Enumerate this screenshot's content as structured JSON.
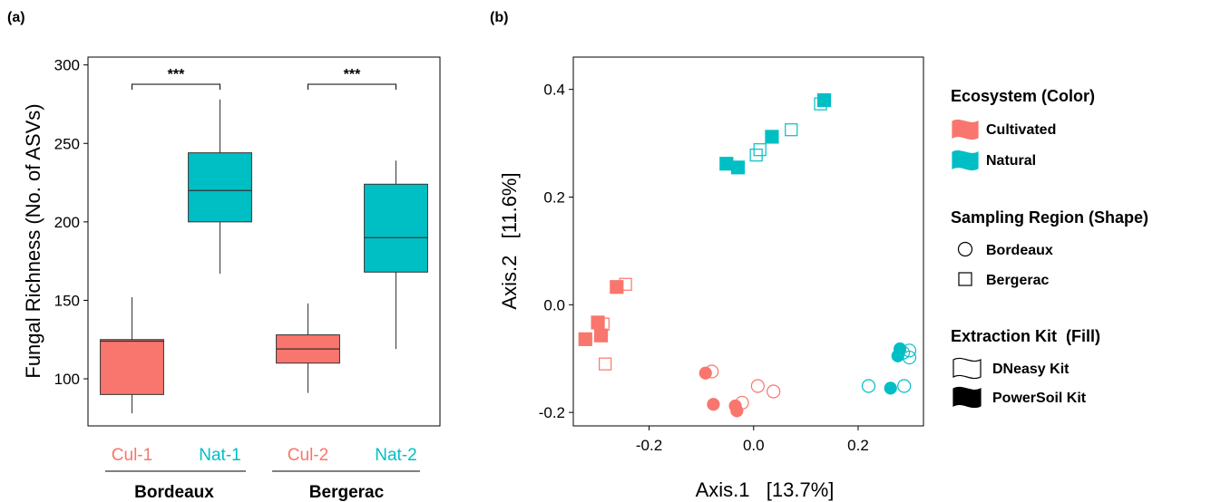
{
  "colors": {
    "cultivated": "#F8766D",
    "natural": "#00BFC4"
  },
  "chart_data": [
    {
      "panel": "(a)",
      "type": "box",
      "ylabel": "Fungal Richness (No. of ASVs)",
      "ylim": [
        70,
        305
      ],
      "yticks": [
        100,
        150,
        200,
        250,
        300
      ],
      "categories": [
        "Cul-1",
        "Nat-1",
        "Cul-2",
        "Nat-2"
      ],
      "category_ecosystem": [
        "cultivated",
        "natural",
        "cultivated",
        "natural"
      ],
      "boxes": [
        {
          "min": 78,
          "q1": 90,
          "median": 124,
          "q3": 125,
          "max": 152
        },
        {
          "min": 167,
          "q1": 200,
          "median": 220,
          "q3": 244,
          "max": 278
        },
        {
          "min": 91,
          "q1": 110,
          "median": 119,
          "q3": 128,
          "max": 148
        },
        {
          "min": 119,
          "q1": 168,
          "median": 190,
          "q3": 224,
          "max": 239
        }
      ],
      "groups": [
        "Bordeaux",
        "Bergerac"
      ],
      "significance": [
        "***",
        "***"
      ]
    },
    {
      "panel": "(b)",
      "type": "scatter",
      "xlabel": "Axis.1   [13.7%]",
      "ylabel": "Axis.2   [11.6%]",
      "xlim": [
        -0.345,
        0.325
      ],
      "ylim": [
        -0.225,
        0.46
      ],
      "xticks": [
        -0.2,
        0.0,
        0.2
      ],
      "yticks": [
        -0.2,
        0.0,
        0.2,
        0.4
      ],
      "xtick_labels": [
        "-0.2",
        "0.0",
        "0.2"
      ],
      "ytick_labels": [
        "-0.2",
        "0.0",
        "0.2",
        "0.4"
      ],
      "points": [
        {
          "x": 0.135,
          "y": 0.38,
          "eco": "natural",
          "region": "Bergerac",
          "kit": "PowerSoil"
        },
        {
          "x": 0.128,
          "y": 0.373,
          "eco": "natural",
          "region": "Bergerac",
          "kit": "DNeasy"
        },
        {
          "x": 0.072,
          "y": 0.325,
          "eco": "natural",
          "region": "Bergerac",
          "kit": "DNeasy"
        },
        {
          "x": 0.035,
          "y": 0.312,
          "eco": "natural",
          "region": "Bergerac",
          "kit": "PowerSoil"
        },
        {
          "x": 0.012,
          "y": 0.288,
          "eco": "natural",
          "region": "Bergerac",
          "kit": "DNeasy"
        },
        {
          "x": 0.005,
          "y": 0.278,
          "eco": "natural",
          "region": "Bergerac",
          "kit": "DNeasy"
        },
        {
          "x": -0.052,
          "y": 0.262,
          "eco": "natural",
          "region": "Bergerac",
          "kit": "PowerSoil"
        },
        {
          "x": -0.03,
          "y": 0.255,
          "eco": "natural",
          "region": "Bergerac",
          "kit": "PowerSoil"
        },
        {
          "x": -0.245,
          "y": 0.038,
          "eco": "cultivated",
          "region": "Bergerac",
          "kit": "DNeasy"
        },
        {
          "x": -0.262,
          "y": 0.033,
          "eco": "cultivated",
          "region": "Bergerac",
          "kit": "PowerSoil"
        },
        {
          "x": -0.288,
          "y": -0.036,
          "eco": "cultivated",
          "region": "Bergerac",
          "kit": "DNeasy"
        },
        {
          "x": -0.298,
          "y": -0.033,
          "eco": "cultivated",
          "region": "Bergerac",
          "kit": "PowerSoil"
        },
        {
          "x": -0.292,
          "y": -0.057,
          "eco": "cultivated",
          "region": "Bergerac",
          "kit": "PowerSoil"
        },
        {
          "x": -0.322,
          "y": -0.064,
          "eco": "cultivated",
          "region": "Bergerac",
          "kit": "PowerSoil"
        },
        {
          "x": -0.284,
          "y": -0.11,
          "eco": "cultivated",
          "region": "Bergerac",
          "kit": "DNeasy"
        },
        {
          "x": -0.08,
          "y": -0.124,
          "eco": "cultivated",
          "region": "Bordeaux",
          "kit": "DNeasy"
        },
        {
          "x": -0.092,
          "y": -0.127,
          "eco": "cultivated",
          "region": "Bordeaux",
          "kit": "PowerSoil"
        },
        {
          "x": 0.008,
          "y": -0.151,
          "eco": "cultivated",
          "region": "Bordeaux",
          "kit": "DNeasy"
        },
        {
          "x": 0.038,
          "y": -0.161,
          "eco": "cultivated",
          "region": "Bordeaux",
          "kit": "DNeasy"
        },
        {
          "x": -0.022,
          "y": -0.182,
          "eco": "cultivated",
          "region": "Bordeaux",
          "kit": "DNeasy"
        },
        {
          "x": -0.077,
          "y": -0.185,
          "eco": "cultivated",
          "region": "Bordeaux",
          "kit": "PowerSoil"
        },
        {
          "x": -0.035,
          "y": -0.188,
          "eco": "cultivated",
          "region": "Bordeaux",
          "kit": "PowerSoil"
        },
        {
          "x": -0.032,
          "y": -0.197,
          "eco": "cultivated",
          "region": "Bordeaux",
          "kit": "PowerSoil"
        },
        {
          "x": 0.28,
          "y": -0.082,
          "eco": "natural",
          "region": "Bordeaux",
          "kit": "PowerSoil"
        },
        {
          "x": 0.298,
          "y": -0.085,
          "eco": "natural",
          "region": "Bordeaux",
          "kit": "DNeasy"
        },
        {
          "x": 0.286,
          "y": -0.089,
          "eco": "natural",
          "region": "Bordeaux",
          "kit": "DNeasy"
        },
        {
          "x": 0.276,
          "y": -0.095,
          "eco": "natural",
          "region": "Bordeaux",
          "kit": "PowerSoil"
        },
        {
          "x": 0.298,
          "y": -0.098,
          "eco": "natural",
          "region": "Bordeaux",
          "kit": "DNeasy"
        },
        {
          "x": 0.22,
          "y": -0.151,
          "eco": "natural",
          "region": "Bordeaux",
          "kit": "DNeasy"
        },
        {
          "x": 0.288,
          "y": -0.151,
          "eco": "natural",
          "region": "Bordeaux",
          "kit": "DNeasy"
        },
        {
          "x": 0.262,
          "y": -0.155,
          "eco": "natural",
          "region": "Bordeaux",
          "kit": "PowerSoil"
        }
      ]
    }
  ],
  "legend": {
    "ecosystem": {
      "title": "Ecosystem (Color)",
      "items": [
        {
          "label": "Cultivated",
          "eco": "cultivated"
        },
        {
          "label": "Natural",
          "eco": "natural"
        }
      ]
    },
    "region": {
      "title": "Sampling Region (Shape)",
      "items": [
        {
          "label": "Bordeaux",
          "shape": "circle"
        },
        {
          "label": "Bergerac",
          "shape": "square"
        }
      ]
    },
    "kit": {
      "title": "Extraction Kit  (Fill)",
      "items": [
        {
          "label": "DNeasy Kit",
          "fill": "open"
        },
        {
          "label": "PowerSoil Kit",
          "fill": "solid"
        }
      ]
    }
  }
}
